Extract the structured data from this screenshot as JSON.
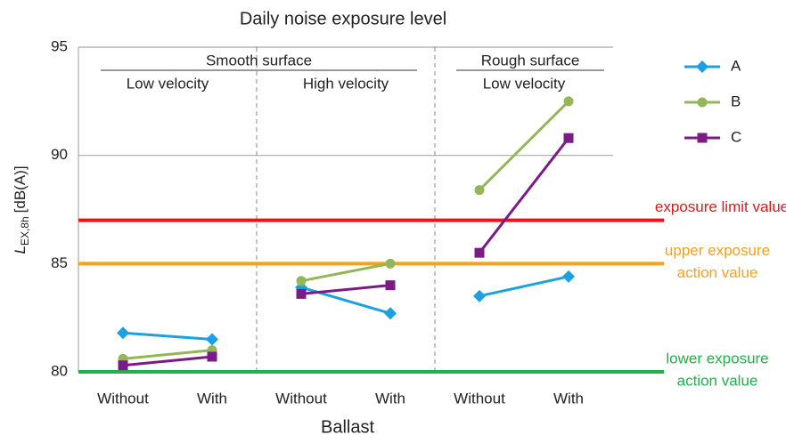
{
  "chart_data": {
    "type": "line",
    "title": "Daily noise exposure level",
    "xlabel": "Ballast",
    "ylabel": {
      "main": "L",
      "sub": "EX,8h",
      "unit": "[dB(A)]"
    },
    "categories": [
      "Without",
      "With",
      "Without",
      "With",
      "Without",
      "With"
    ],
    "category_groups": [
      "Low velocity",
      "High velocity",
      "Low velocity"
    ],
    "super_groups": [
      "Smooth surface",
      "Rough surface"
    ],
    "series": [
      {
        "name": "A",
        "color": "#1ba1e2",
        "marker": "diamond",
        "values": [
          81.8,
          81.5,
          83.9,
          82.7,
          83.5,
          84.4
        ]
      },
      {
        "name": "B",
        "color": "#93b756",
        "marker": "circle",
        "values": [
          80.6,
          81.0,
          84.2,
          85.0,
          88.4,
          92.5
        ]
      },
      {
        "name": "C",
        "color": "#7d1b86",
        "marker": "square",
        "values": [
          80.3,
          80.7,
          83.6,
          84.0,
          85.5,
          90.8
        ]
      }
    ],
    "reference_lines": [
      {
        "value": 87,
        "label": [
          "exposure limit value"
        ],
        "color": "#e8141c"
      },
      {
        "value": 85,
        "label": [
          "upper exposure",
          "action value"
        ],
        "color": "#f7a11a"
      },
      {
        "value": 80,
        "label": [
          "lower exposure",
          "action value"
        ],
        "color": "#1db34a"
      }
    ],
    "ylim": [
      80,
      95
    ],
    "yticks": [
      80,
      85,
      90,
      95
    ],
    "grid": true
  }
}
